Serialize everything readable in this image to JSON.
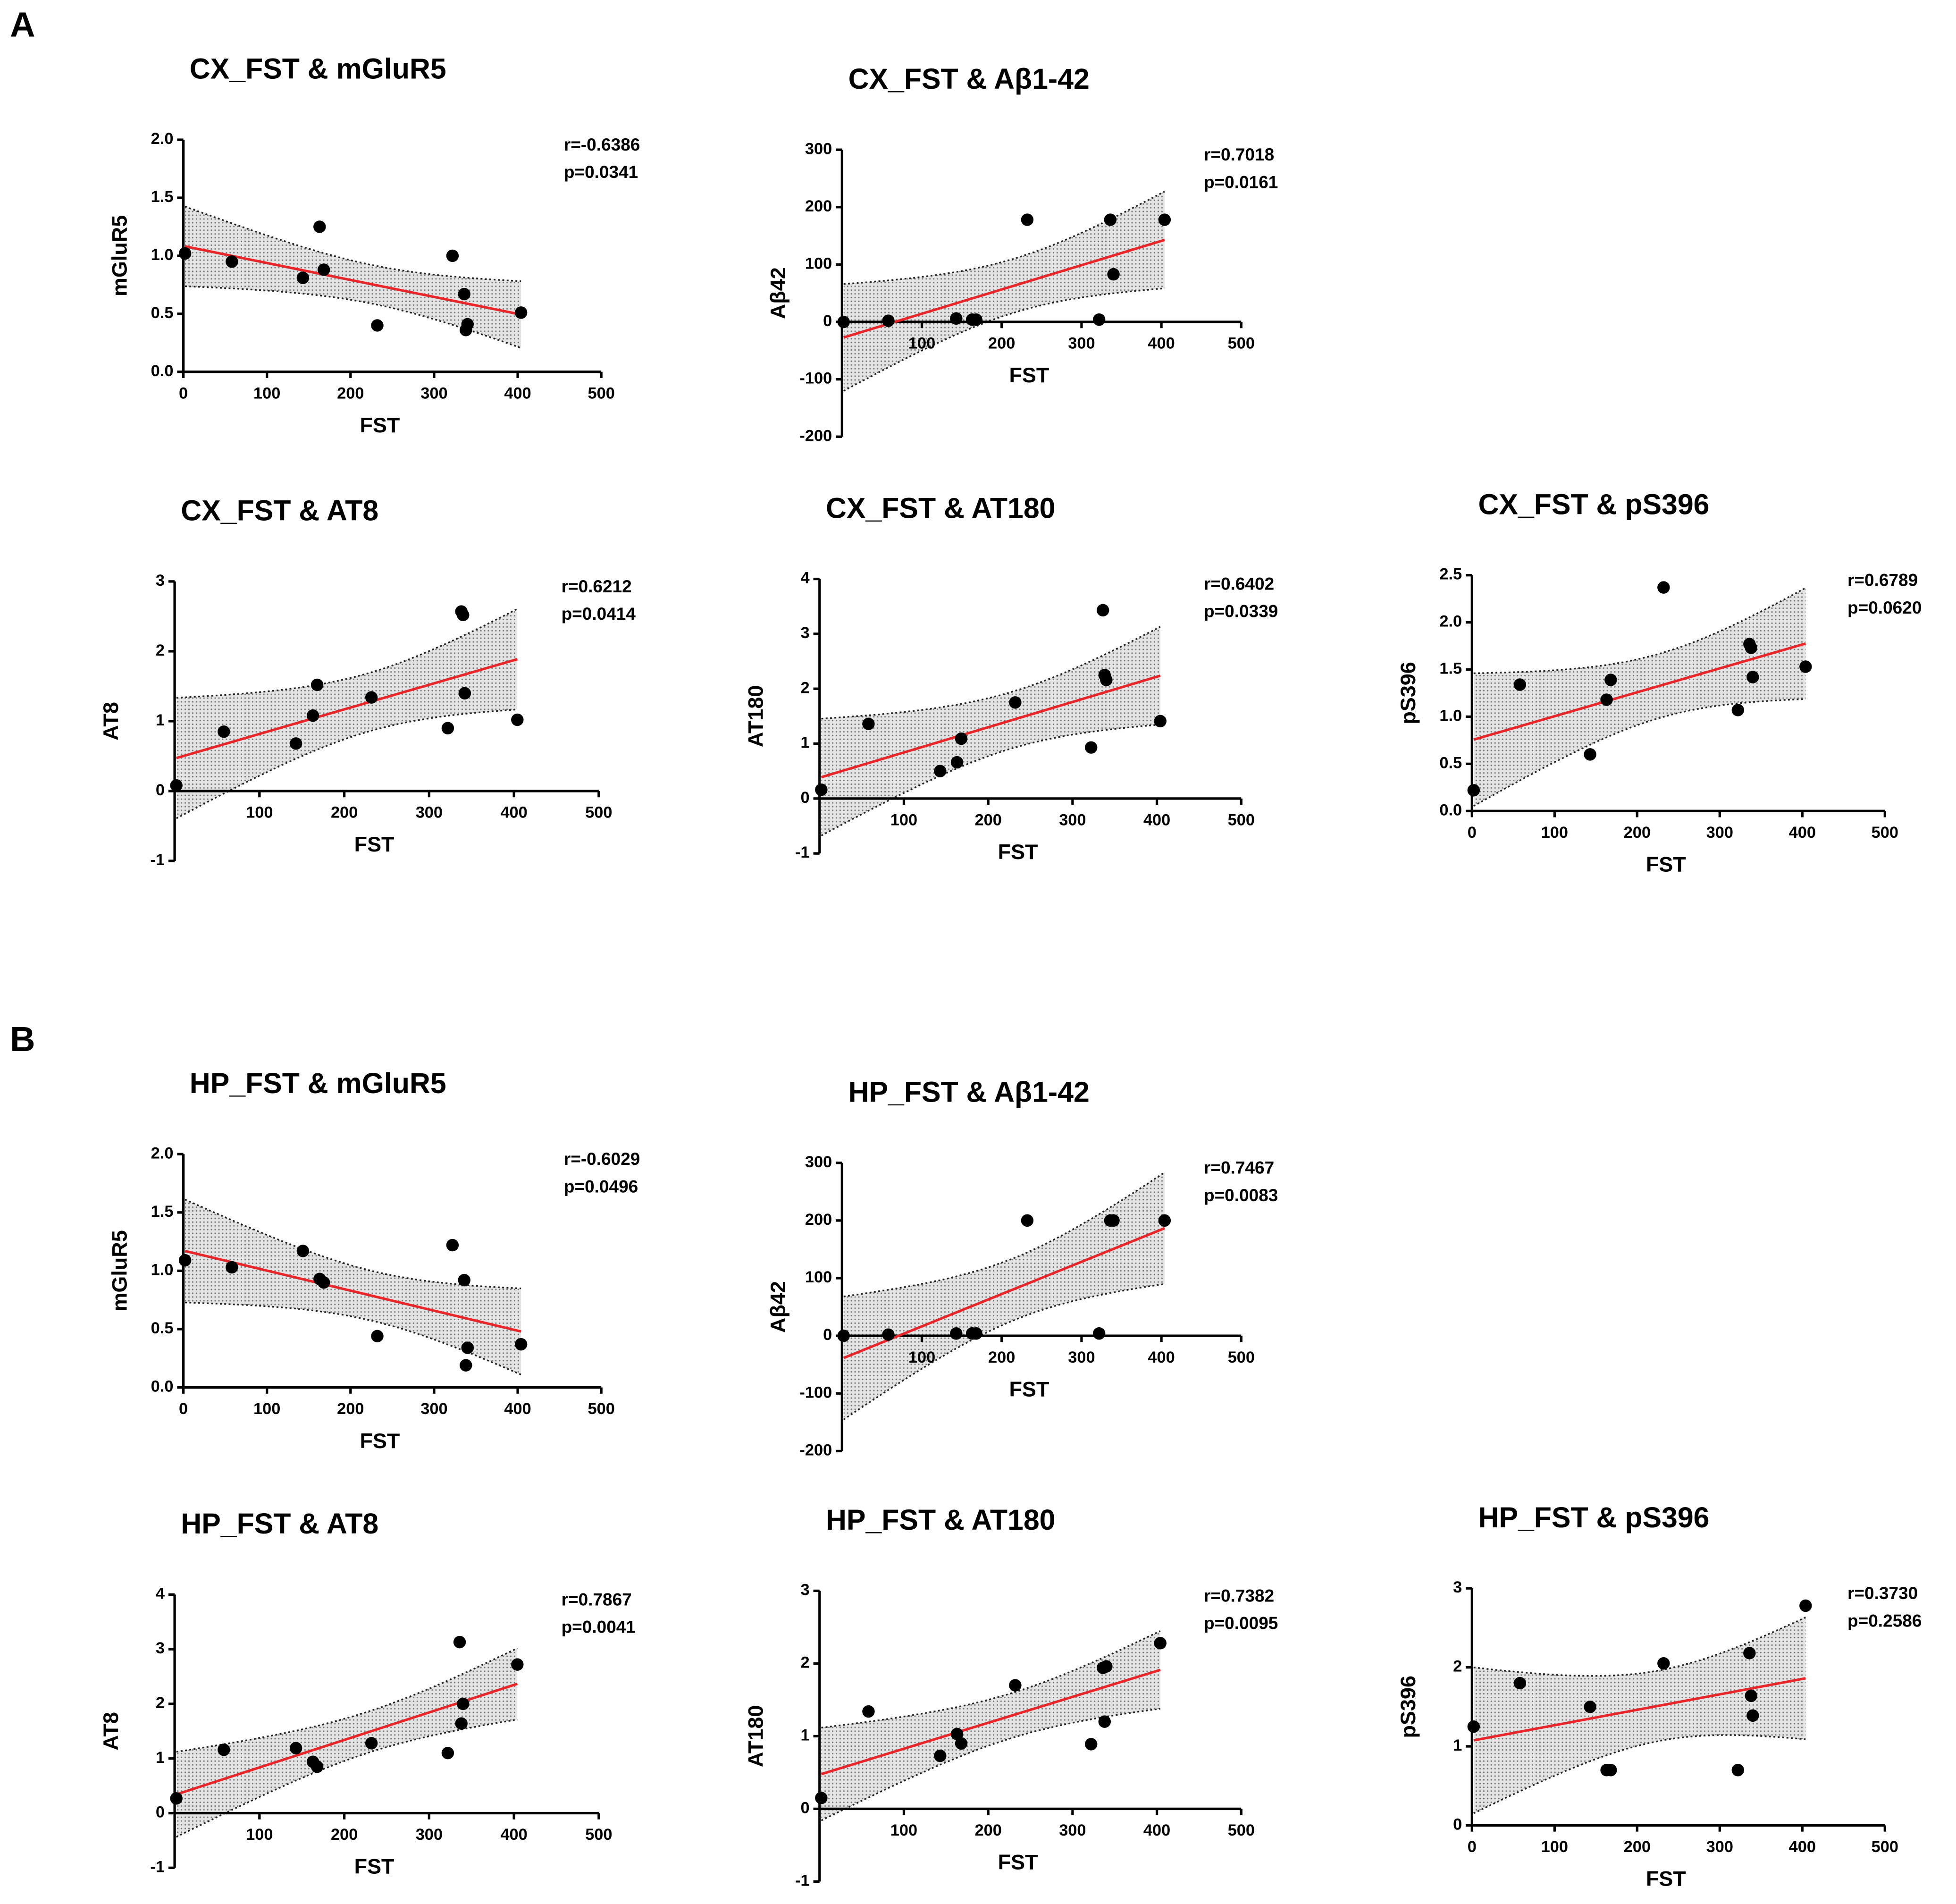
{
  "panels": [
    "A",
    "B"
  ],
  "chart_data": [
    {
      "type": "scatter",
      "title": "CX_FST & mGluR5",
      "x_label": "FST",
      "y_label": "mGluR5",
      "x": [
        2,
        58,
        143,
        163,
        168,
        232,
        322,
        336,
        338,
        340,
        404
      ],
      "values": [
        1.02,
        0.95,
        0.81,
        1.25,
        0.88,
        0.4,
        1.0,
        0.67,
        0.36,
        0.41,
        0.51
      ],
      "xlim": [
        0,
        500
      ],
      "ylim": [
        0,
        2
      ],
      "xticks": [
        0,
        100,
        200,
        300,
        400,
        500
      ],
      "yticks": [
        {
          "value": 0,
          "label": "0.0"
        },
        {
          "value": 0.5,
          "label": "0.5"
        },
        {
          "value": 1,
          "label": "1.0"
        },
        {
          "value": 1.5,
          "label": "1.5"
        },
        {
          "value": 2,
          "label": "2.0"
        }
      ],
      "annotations": [
        "r=-0.6386",
        "p=0.0341"
      ],
      "color": "#000000",
      "fit_color": "#e8262a"
    },
    {
      "type": "scatter",
      "title": "CX_FST & Aβ1-42",
      "x_label": "FST",
      "y_label": "Aβ42",
      "x": [
        2,
        58,
        143,
        163,
        168,
        232,
        322,
        336,
        340,
        404
      ],
      "values": [
        0,
        2,
        6,
        4,
        4,
        178,
        4,
        178,
        83,
        178
      ],
      "xlim": [
        0,
        500
      ],
      "ylim": [
        -200,
        300
      ],
      "xticks": [
        100,
        200,
        300,
        400,
        500
      ],
      "yticks": [
        -200,
        -100,
        0,
        100,
        200,
        300
      ],
      "annotations": [
        "r=0.7018",
        "p=0.0161"
      ],
      "color": "#000000",
      "fit_color": "#e8262a"
    },
    {
      "type": "scatter",
      "title": "CX_FST & AT8",
      "x_label": "FST",
      "y_label": "AT8",
      "x": [
        2,
        58,
        143,
        163,
        168,
        232,
        322,
        338,
        340,
        342,
        404
      ],
      "values": [
        0.08,
        0.85,
        0.68,
        1.08,
        1.52,
        1.34,
        0.9,
        2.57,
        2.52,
        1.4,
        1.02
      ],
      "xlim": [
        0,
        500
      ],
      "ylim": [
        -1,
        3
      ],
      "xticks": [
        100,
        200,
        300,
        400,
        500
      ],
      "yticks": [
        -1,
        0,
        1,
        2,
        3
      ],
      "annotations": [
        "r=0.6212",
        "p=0.0414"
      ],
      "color": "#000000",
      "fit_color": "#e8262a"
    },
    {
      "type": "scatter",
      "title": "CX_FST & AT180",
      "x_label": "FST",
      "y_label": "AT180",
      "x": [
        2,
        58,
        143,
        163,
        168,
        232,
        322,
        336,
        338,
        340,
        404
      ],
      "values": [
        0.16,
        1.36,
        0.5,
        0.66,
        1.09,
        1.75,
        0.93,
        3.43,
        2.25,
        2.16,
        1.41
      ],
      "xlim": [
        0,
        500
      ],
      "ylim": [
        -1,
        4
      ],
      "xticks": [
        100,
        200,
        300,
        400,
        500
      ],
      "yticks": [
        -1,
        0,
        1,
        2,
        3,
        4
      ],
      "annotations": [
        "r=0.6402",
        "p=0.0339"
      ],
      "color": "#000000",
      "fit_color": "#e8262a"
    },
    {
      "type": "scatter",
      "title": "CX_FST & pS396",
      "x_label": "FST",
      "y_label": "pS396",
      "x": [
        2,
        58,
        143,
        163,
        168,
        232,
        322,
        336,
        338,
        340,
        404
      ],
      "values": [
        0.22,
        1.34,
        0.6,
        1.18,
        1.39,
        2.37,
        1.07,
        1.77,
        1.73,
        1.42,
        1.53
      ],
      "xlim": [
        0,
        500
      ],
      "ylim": [
        0,
        2.5
      ],
      "xticks": [
        0,
        100,
        200,
        300,
        400,
        500
      ],
      "yticks": [
        {
          "value": 0,
          "label": "0.0"
        },
        {
          "value": 0.5,
          "label": "0.5"
        },
        {
          "value": 1,
          "label": "1.0"
        },
        {
          "value": 1.5,
          "label": "1.5"
        },
        {
          "value": 2,
          "label": "2.0"
        },
        {
          "value": 2.5,
          "label": "2.5"
        }
      ],
      "annotations": [
        "r=0.6789",
        "p=0.0620"
      ],
      "color": "#000000",
      "fit_color": "#e8262a"
    },
    {
      "type": "scatter",
      "title": "HP_FST & mGluR5",
      "x_label": "FST",
      "y_label": "mGluR5",
      "x": [
        2,
        58,
        143,
        163,
        168,
        232,
        322,
        336,
        338,
        340,
        404
      ],
      "values": [
        1.09,
        1.03,
        1.17,
        0.93,
        0.9,
        0.44,
        1.22,
        0.92,
        0.19,
        0.34,
        0.37
      ],
      "xlim": [
        0,
        500
      ],
      "ylim": [
        0,
        2
      ],
      "xticks": [
        0,
        100,
        200,
        300,
        400,
        500
      ],
      "yticks": [
        {
          "value": 0,
          "label": "0.0"
        },
        {
          "value": 0.5,
          "label": "0.5"
        },
        {
          "value": 1,
          "label": "1.0"
        },
        {
          "value": 1.5,
          "label": "1.5"
        },
        {
          "value": 2,
          "label": "2.0"
        }
      ],
      "annotations": [
        "r=-0.6029",
        "p=0.0496"
      ],
      "color": "#000000",
      "fit_color": "#e8262a"
    },
    {
      "type": "scatter",
      "title": "HP_FST & Aβ1-42",
      "x_label": "FST",
      "y_label": "Aβ42",
      "x": [
        2,
        58,
        143,
        163,
        168,
        232,
        322,
        336,
        340,
        404
      ],
      "values": [
        0,
        2,
        4,
        4,
        4,
        200,
        4,
        200,
        200,
        200
      ],
      "xlim": [
        0,
        500
      ],
      "ylim": [
        -200,
        300
      ],
      "xticks": [
        100,
        200,
        300,
        400,
        500
      ],
      "yticks": [
        -200,
        -100,
        0,
        100,
        200,
        300
      ],
      "annotations": [
        "r=0.7467",
        "p=0.0083"
      ],
      "color": "#000000",
      "fit_color": "#e8262a"
    },
    {
      "type": "scatter",
      "title": "HP_FST & AT8",
      "x_label": "FST",
      "y_label": "AT8",
      "x": [
        2,
        58,
        143,
        163,
        168,
        232,
        322,
        336,
        340,
        338,
        404
      ],
      "values": [
        0.27,
        1.16,
        1.19,
        0.94,
        0.85,
        1.28,
        1.1,
        3.13,
        2.0,
        1.64,
        2.72
      ],
      "xlim": [
        0,
        500
      ],
      "ylim": [
        -1,
        4
      ],
      "xticks": [
        100,
        200,
        300,
        400,
        500
      ],
      "yticks": [
        -1,
        0,
        1,
        2,
        3,
        4
      ],
      "annotations": [
        "r=0.7867",
        "p=0.0041"
      ],
      "color": "#000000",
      "fit_color": "#e8262a"
    },
    {
      "type": "scatter",
      "title": "HP_FST & AT180",
      "x_label": "FST",
      "y_label": "AT180",
      "x": [
        2,
        58,
        143,
        163,
        168,
        232,
        322,
        336,
        340,
        338,
        404
      ],
      "values": [
        0.15,
        1.34,
        0.73,
        1.03,
        0.9,
        1.7,
        0.89,
        1.94,
        1.96,
        1.2,
        2.28
      ],
      "xlim": [
        0,
        500
      ],
      "ylim": [
        -1,
        3
      ],
      "xticks": [
        100,
        200,
        300,
        400,
        500
      ],
      "yticks": [
        -1,
        0,
        1,
        2,
        3
      ],
      "annotations": [
        "r=0.7382",
        "p=0.0095"
      ],
      "color": "#000000",
      "fit_color": "#e8262a"
    },
    {
      "type": "scatter",
      "title": "HP_FST & pS396",
      "x_label": "FST",
      "y_label": "pS396",
      "x": [
        2,
        58,
        143,
        163,
        168,
        232,
        322,
        336,
        338,
        340,
        404
      ],
      "values": [
        1.25,
        1.8,
        1.5,
        0.7,
        0.7,
        2.05,
        0.7,
        2.18,
        1.64,
        1.39,
        2.78
      ],
      "xlim": [
        0,
        500
      ],
      "ylim": [
        0,
        3
      ],
      "xticks": [
        0,
        100,
        200,
        300,
        400,
        500
      ],
      "yticks": [
        0,
        1,
        2,
        3
      ],
      "annotations": [
        "r=0.3730",
        "p=0.2586"
      ],
      "color": "#000000",
      "fit_color": "#e8262a"
    }
  ]
}
